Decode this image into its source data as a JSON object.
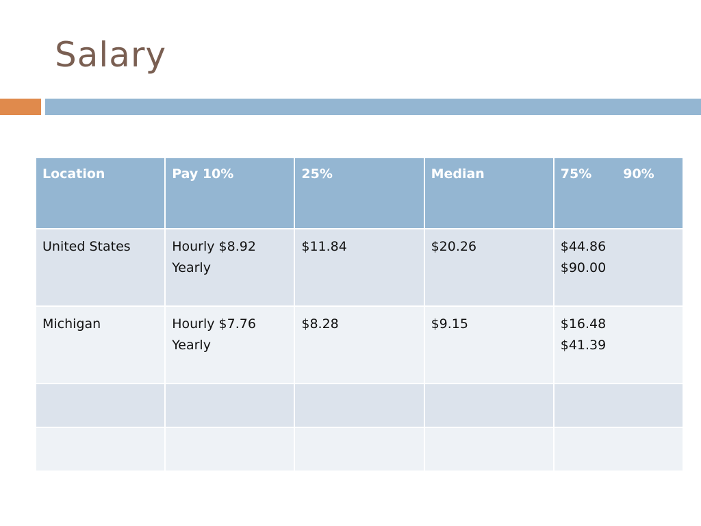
{
  "slide": {
    "title": "Salary"
  },
  "table": {
    "headers": [
      "Location",
      "Pay 10%",
      "25%",
      "Median",
      "75%",
      "90%"
    ],
    "rows": [
      {
        "location": "United States",
        "pay10": [
          "Hourly $8.92",
          "Yearly"
        ],
        "p25": "$11.84",
        "median": "$20.26",
        "p75_90": [
          "$44.86",
          "$90.00"
        ]
      },
      {
        "location": "Michigan",
        "pay10": [
          "Hourly $7.76",
          "Yearly"
        ],
        "p25": "$8.28",
        "median": "$9.15",
        "p75_90": [
          "$16.48",
          "$41.39"
        ]
      }
    ]
  },
  "colors": {
    "title": "#7a5f52",
    "accent_orange": "#e08a4c",
    "accent_blue": "#94b6d2",
    "header_bg": "#94b6d2",
    "row_band_1": "#dce3ec",
    "row_band_2": "#eef2f6"
  }
}
